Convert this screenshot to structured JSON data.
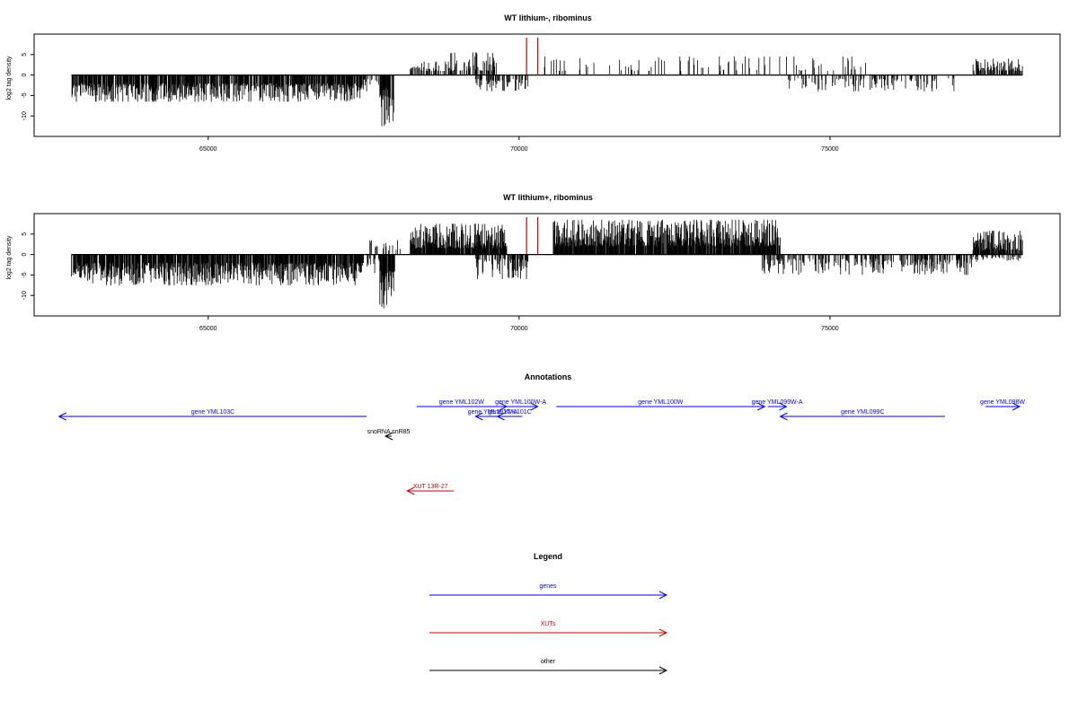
{
  "chart_data": [
    {
      "type": "bar",
      "title": "WT lithium-, ribominus",
      "ylabel": "log2 tag density",
      "xlabel": "",
      "xlim": [
        62200,
        78700
      ],
      "ylim": [
        -15,
        10
      ],
      "y_ticks": [
        5,
        0,
        -5,
        -10
      ],
      "x_ticks": [
        65000,
        70000,
        75000
      ],
      "x_tick_labels": [
        "65000",
        "70000",
        "75000"
      ],
      "markers_x": [
        70120,
        70300
      ],
      "marker_color": "#cc0000",
      "bar_color": "#000000",
      "segments": [
        {
          "start": 62800,
          "end": 67500,
          "sign": -1,
          "min": 2.0,
          "max": 6.5,
          "density": 0.85
        },
        {
          "start": 67500,
          "end": 67750,
          "sign": -1,
          "min": 1.0,
          "max": 4.0,
          "density": 0.3
        },
        {
          "start": 67760,
          "end": 67990,
          "sign": -1,
          "min": 3.0,
          "max": 12.5,
          "density": 0.9
        },
        {
          "start": 67620,
          "end": 67720,
          "sign": 1,
          "min": 1.0,
          "max": 2.0,
          "density": 0.3
        },
        {
          "start": 68250,
          "end": 68900,
          "sign": 1,
          "min": 1.0,
          "max": 3.3,
          "density": 0.55
        },
        {
          "start": 68900,
          "end": 69650,
          "sign": 1,
          "min": 1.0,
          "max": 5.5,
          "density": 0.55
        },
        {
          "start": 69300,
          "end": 70150,
          "sign": -1,
          "min": 1.0,
          "max": 4.0,
          "density": 0.45
        },
        {
          "start": 70400,
          "end": 75600,
          "sign": 1,
          "min": 1.0,
          "max": 4.5,
          "density": 0.12
        },
        {
          "start": 73300,
          "end": 73400,
          "sign": 1,
          "min": 3.0,
          "max": 5.5,
          "density": 0.3
        },
        {
          "start": 74300,
          "end": 77000,
          "sign": -1,
          "min": 0.8,
          "max": 4.0,
          "density": 0.25
        },
        {
          "start": 77300,
          "end": 78100,
          "sign": 1,
          "min": 1.0,
          "max": 4.0,
          "density": 0.6
        }
      ]
    },
    {
      "type": "bar",
      "title": "WT lithium+, ribominus",
      "ylabel": "log2 tag density",
      "xlabel": "",
      "xlim": [
        62200,
        78700
      ],
      "ylim": [
        -15,
        10
      ],
      "y_ticks": [
        5,
        0,
        -5,
        -10
      ],
      "x_ticks": [
        65000,
        70000,
        75000
      ],
      "x_tick_labels": [
        "65000",
        "70000",
        "75000"
      ],
      "markers_x": [
        70120,
        70300
      ],
      "marker_color": "#cc0000",
      "bar_color": "#000000",
      "segments": [
        {
          "start": 62800,
          "end": 67500,
          "sign": -1,
          "min": 2.0,
          "max": 7.5,
          "density": 0.9
        },
        {
          "start": 67550,
          "end": 67750,
          "sign": -1,
          "min": 1.0,
          "max": 4.5,
          "density": 0.4
        },
        {
          "start": 67760,
          "end": 68000,
          "sign": -1,
          "min": 4.0,
          "max": 13.5,
          "density": 0.95
        },
        {
          "start": 67600,
          "end": 68100,
          "sign": 1,
          "min": 1.0,
          "max": 3.5,
          "density": 0.3
        },
        {
          "start": 68250,
          "end": 69800,
          "sign": 1,
          "min": 1.5,
          "max": 7.5,
          "density": 0.95
        },
        {
          "start": 69300,
          "end": 70150,
          "sign": -1,
          "min": 1.0,
          "max": 6.0,
          "density": 0.6
        },
        {
          "start": 70550,
          "end": 74200,
          "sign": 1,
          "min": 2.0,
          "max": 8.5,
          "density": 0.95
        },
        {
          "start": 73900,
          "end": 77400,
          "sign": -1,
          "min": 1.0,
          "max": 5.0,
          "density": 0.45
        },
        {
          "start": 77300,
          "end": 78100,
          "sign": 1,
          "min": 1.0,
          "max": 5.8,
          "density": 0.85
        },
        {
          "start": 77300,
          "end": 78100,
          "sign": -1,
          "min": 0.5,
          "max": 1.5,
          "density": 0.3
        }
      ]
    }
  ],
  "annotations": {
    "title": "Annotations",
    "items": [
      {
        "label": "gene YML103C",
        "start": 67550,
        "end": 62600,
        "row": 1,
        "color": "#0000ff"
      },
      {
        "label": "gene YML102W",
        "start": 68350,
        "end": 69800,
        "row": 0,
        "color": "#0000ff"
      },
      {
        "label": "gene YML101C-A",
        "start": 69850,
        "end": 69300,
        "row": 1,
        "color": "#0000ff"
      },
      {
        "label": "gene YML101C",
        "start": 70050,
        "end": 69650,
        "row": 1,
        "color": "#0000ff"
      },
      {
        "label": "gene YML100W-A",
        "start": 69750,
        "end": 70300,
        "row": 0,
        "color": "#0000ff"
      },
      {
        "label": "gene YML100W",
        "start": 70600,
        "end": 73950,
        "row": 0,
        "color": "#0000ff"
      },
      {
        "label": "gene YML099W-A",
        "start": 74000,
        "end": 74300,
        "row": 0,
        "color": "#0000ff"
      },
      {
        "label": "gene YML099C",
        "start": 76850,
        "end": 74200,
        "row": 1,
        "color": "#0000ff"
      },
      {
        "label": "gene YML098W",
        "start": 77500,
        "end": 78050,
        "row": 0,
        "color": "#0000ff"
      },
      {
        "label": "snoRNA snR85",
        "start": 67950,
        "end": 67850,
        "row": 2,
        "color": "#000000"
      },
      {
        "label": "XUT 13R-27",
        "start": 68950,
        "end": 68200,
        "row": 3,
        "color": "#cc0000"
      }
    ]
  },
  "legend": {
    "title": "Legend",
    "entries": [
      {
        "label": "genes",
        "color": "#0000ff"
      },
      {
        "label": "XUTs",
        "color": "#cc0000"
      },
      {
        "label": "other",
        "color": "#000000"
      }
    ]
  }
}
